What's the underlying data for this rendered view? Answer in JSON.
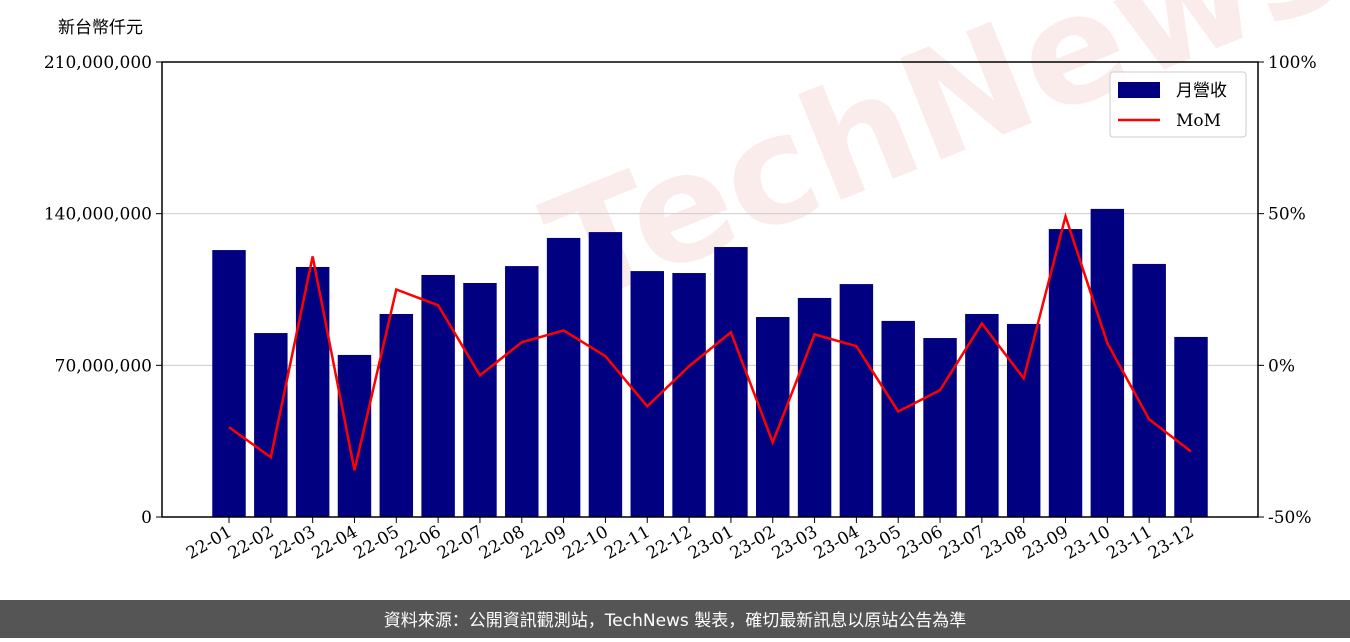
{
  "chart_data": {
    "type": "bar-line",
    "unit_label": "新台幣仟元",
    "watermark": "TechNews",
    "categories": [
      "22-01",
      "22-02",
      "22-03",
      "22-04",
      "22-05",
      "22-06",
      "22-07",
      "22-08",
      "22-09",
      "22-10",
      "22-11",
      "22-12",
      "23-01",
      "23-02",
      "23-03",
      "23-04",
      "23-05",
      "23-06",
      "23-07",
      "23-08",
      "23-09",
      "23-10",
      "23-11",
      "23-12"
    ],
    "series": [
      {
        "name": "月營收",
        "type": "bar",
        "color": "#000080",
        "values": [
          123200000,
          84900000,
          115400000,
          74800000,
          93700000,
          111700000,
          108000000,
          115800000,
          128800000,
          131500000,
          113500000,
          112600000,
          124600000,
          92300000,
          101100000,
          107500000,
          90500000,
          82600000,
          93700000,
          89100000,
          132900000,
          142200000,
          116800000,
          83100000
        ]
      },
      {
        "name": "MoM",
        "type": "line",
        "axis": "y2",
        "color": "#ff0000",
        "values": [
          -20.4,
          -30.3,
          35.9,
          -34.6,
          25.0,
          19.8,
          -3.3,
          7.6,
          11.5,
          3.0,
          -13.5,
          -0.3,
          10.9,
          -25.4,
          10.2,
          6.3,
          -15.2,
          -8.2,
          13.8,
          -4.3,
          49.1,
          7.3,
          -17.8,
          -28.4
        ]
      }
    ],
    "ylim": [
      0,
      210000000
    ],
    "yticks": [
      0,
      {
        "value": 70000000,
        "label": "70,000,000"
      },
      {
        "value": 140000000,
        "label": "140,000,000"
      },
      {
        "value": 210000000,
        "label": "210,000,000"
      }
    ],
    "y2lim": [
      -50,
      100
    ],
    "y2ticks": [
      {
        "value": -50,
        "label": "-50%"
      },
      {
        "value": 0,
        "label": "0%"
      },
      {
        "value": 50,
        "label": "50%"
      },
      {
        "value": 100,
        "label": "100%"
      }
    ],
    "grid": true,
    "legend": "upper right",
    "footer": "資料來源：公開資訊觀測站，TechNews 製表，確切最新訊息以原站公告為準"
  }
}
